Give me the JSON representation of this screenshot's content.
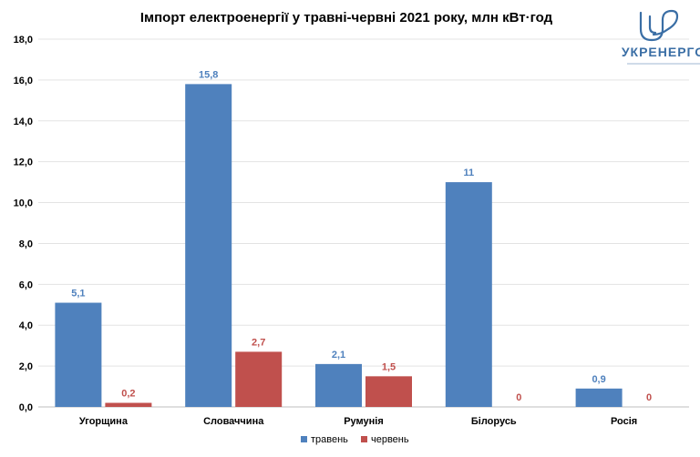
{
  "chart_data": {
    "type": "bar",
    "title": "Імпорт електроенергії у травні-червні 2021 року, млн кВт·год",
    "categories": [
      "Угорщина",
      "Словаччина",
      "Румунія",
      "Білорусь",
      "Росія"
    ],
    "series": [
      {
        "name": "травень",
        "color": "#4F81BD",
        "values": [
          5.1,
          15.8,
          2.1,
          11,
          0.9
        ],
        "labels": [
          "5,1",
          "15,8",
          "2,1",
          "11",
          "0,9"
        ],
        "label_color": "#4F81BD"
      },
      {
        "name": "червень",
        "color": "#C0504D",
        "values": [
          0.2,
          2.7,
          1.5,
          0,
          0
        ],
        "labels": [
          "0,2",
          "2,7",
          "1,5",
          "0",
          "0"
        ],
        "label_color": "#C0504D"
      }
    ],
    "ylim": [
      0,
      18
    ],
    "yticks": [
      0,
      2,
      4,
      6,
      8,
      10,
      12,
      14,
      16,
      18
    ],
    "ytick_labels": [
      "0,0",
      "2,0",
      "4,0",
      "6,0",
      "8,0",
      "10,0",
      "12,0",
      "14,0",
      "16,0",
      "18,0"
    ],
    "grid": true,
    "legend_position": "bottom"
  },
  "logo": {
    "text": "УКРЕНЕРГО",
    "color": "#3A6EA5",
    "icon": "ukrenergo-logo-icon"
  }
}
